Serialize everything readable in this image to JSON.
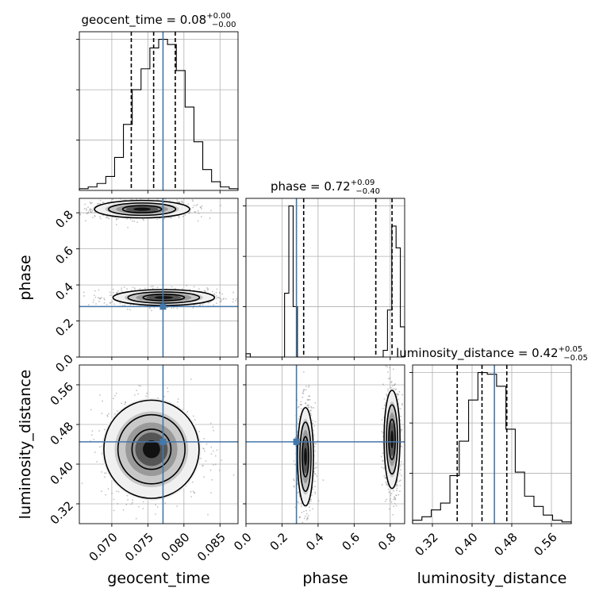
{
  "chart_data": {
    "type": "corner",
    "parameters": [
      {
        "name": "geocent_time",
        "range": [
          0.0655,
          0.0875
        ],
        "truth": 0.0771,
        "ticks": [
          "0.070",
          "0.075",
          "0.080",
          "0.085"
        ],
        "tick_values": [
          0.07,
          0.075,
          0.08,
          0.085
        ],
        "quantiles": [
          0.0727,
          0.0758,
          0.0788
        ],
        "title_main": "geocent_time = 0.08",
        "title_sup": "+0.00",
        "title_sub": "−0.00",
        "hist_values": [
          1,
          2,
          4,
          8,
          19,
          38,
          58,
          70,
          82,
          87,
          84,
          69,
          48,
          28,
          12,
          5,
          2,
          1
        ]
      },
      {
        "name": "phase",
        "range": [
          0.0,
          0.88
        ],
        "truth": 0.28,
        "ticks": [
          "0.0",
          "0.2",
          "0.4",
          "0.6",
          "0.8"
        ],
        "tick_values": [
          0.0,
          0.2,
          0.4,
          0.6,
          0.8
        ],
        "quantiles": [
          0.32,
          0.72,
          0.81
        ],
        "title_main": "phase = 0.72",
        "title_sup": "+0.09",
        "title_sub": "−0.40",
        "hist_values": [
          2,
          0,
          0,
          0,
          0,
          0,
          0,
          0,
          0,
          38,
          90,
          30,
          0,
          0,
          0,
          0,
          0,
          0,
          0,
          0,
          0,
          0,
          0,
          0,
          0,
          0,
          0,
          0,
          0,
          0,
          0,
          0,
          4,
          28,
          78,
          65,
          18
        ]
      },
      {
        "name": "luminosity_distance",
        "range": [
          0.28,
          0.6
        ],
        "truth": 0.445,
        "ticks": [
          "0.32",
          "0.40",
          "0.48",
          "0.56"
        ],
        "tick_values": [
          0.32,
          0.4,
          0.48,
          0.56
        ],
        "quantiles": [
          0.37,
          0.42,
          0.47
        ],
        "title_main": "luminosity_distance = 0.42",
        "title_sup": "+0.05",
        "title_sub": "−0.05",
        "hist_values": [
          2,
          4,
          8,
          12,
          28,
          48,
          72,
          88,
          87,
          80,
          55,
          30,
          16,
          10,
          5,
          2,
          1
        ]
      }
    ],
    "y_tick_labels": {
      "phase": [
        "0.0",
        "0.2",
        "0.4",
        "0.6",
        "0.8"
      ],
      "luminosity_distance": [
        "0.32",
        "0.40",
        "0.48",
        "0.56"
      ]
    },
    "pair_modes": {
      "geocent_time-phase": [
        {
          "x": 0.0742,
          "y": 0.82,
          "sx": 0.003,
          "sy": 0.022
        },
        {
          "x": 0.0772,
          "y": 0.33,
          "sx": 0.0032,
          "sy": 0.02
        }
      ],
      "geocent_time-luminosity_distance": [
        {
          "x": 0.0755,
          "y": 0.43,
          "sx": 0.003,
          "sy": 0.045
        }
      ],
      "phase-luminosity_distance": [
        {
          "x": 0.33,
          "y": 0.415,
          "sx": 0.02,
          "sy": 0.045
        },
        {
          "x": 0.81,
          "y": 0.45,
          "sx": 0.02,
          "sy": 0.045
        }
      ]
    },
    "truth_color": "#4477aa",
    "grid": true
  }
}
